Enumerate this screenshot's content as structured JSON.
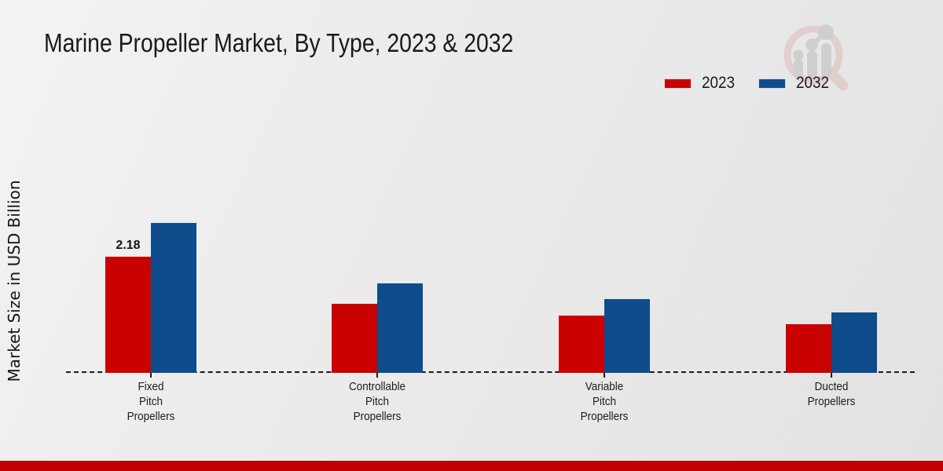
{
  "page": {
    "footer_band_color": "#c00000",
    "background_color": "#ebebeb",
    "watermark_icon": "magnifier-bar-chart-logo"
  },
  "chart_data": {
    "type": "bar",
    "title": "Marine Propeller Market, By Type, 2023 & 2032",
    "xlabel": "",
    "ylabel": "Market Size in USD Billion",
    "unit": "USD Billion",
    "categories": [
      [
        "Fixed",
        "Pitch",
        "Propellers"
      ],
      [
        "Controllable",
        "Pitch",
        "Propellers"
      ],
      [
        "Variable",
        "Pitch",
        "Propellers"
      ],
      [
        "Ducted",
        "Propellers"
      ]
    ],
    "series": [
      {
        "name": "2023",
        "color": "#c90101",
        "values": [
          2.18,
          1.3,
          1.07,
          0.91
        ],
        "value_labels": [
          "2.18",
          "",
          "",
          ""
        ]
      },
      {
        "name": "2032",
        "color": "#0f4c8c",
        "values": [
          2.81,
          1.68,
          1.38,
          1.13
        ],
        "value_labels": [
          "",
          "",
          "",
          ""
        ]
      }
    ],
    "ylim": [
      0,
      3.2
    ],
    "grid": false,
    "y_axis_ticks_visible": false,
    "baseline_style": "dashed",
    "legend_position": "top-right"
  }
}
